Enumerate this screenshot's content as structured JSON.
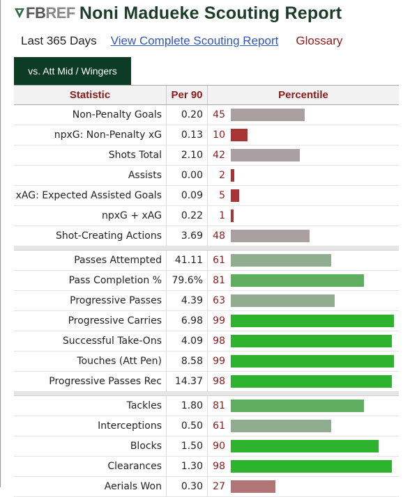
{
  "header": {
    "logo_text_fb": "FB",
    "logo_text_ref": "REF",
    "title": "Noni Madueke Scouting Report"
  },
  "subnav": {
    "range": "Last 365 Days",
    "full_report_link": "View Complete Scouting Report",
    "glossary_link": "Glossary"
  },
  "tab": {
    "label": "vs. Att Mid / Wingers"
  },
  "table": {
    "headers": {
      "statistic": "Statistic",
      "per90": "Per 90",
      "percentile": "Percentile"
    },
    "groups": [
      [
        {
          "stat": "Non-Penalty Goals",
          "per90": "0.20",
          "percentile": 45
        },
        {
          "stat": "npxG: Non-Penalty xG",
          "per90": "0.13",
          "percentile": 10
        },
        {
          "stat": "Shots Total",
          "per90": "2.10",
          "percentile": 42
        },
        {
          "stat": "Assists",
          "per90": "0.00",
          "percentile": 2
        },
        {
          "stat": "xAG: Expected Assisted Goals",
          "per90": "0.09",
          "percentile": 5
        },
        {
          "stat": "npxG + xAG",
          "per90": "0.22",
          "percentile": 1
        },
        {
          "stat": "Shot-Creating Actions",
          "per90": "3.69",
          "percentile": 48
        }
      ],
      [
        {
          "stat": "Passes Attempted",
          "per90": "41.11",
          "percentile": 61
        },
        {
          "stat": "Pass Completion %",
          "per90": "79.6%",
          "percentile": 81
        },
        {
          "stat": "Progressive Passes",
          "per90": "4.39",
          "percentile": 63
        },
        {
          "stat": "Progressive Carries",
          "per90": "6.98",
          "percentile": 99
        },
        {
          "stat": "Successful Take-Ons",
          "per90": "4.09",
          "percentile": 98
        },
        {
          "stat": "Touches (Att Pen)",
          "per90": "8.58",
          "percentile": 99
        },
        {
          "stat": "Progressive Passes Rec",
          "per90": "14.37",
          "percentile": 98
        }
      ],
      [
        {
          "stat": "Tackles",
          "per90": "1.80",
          "percentile": 81
        },
        {
          "stat": "Interceptions",
          "per90": "0.50",
          "percentile": 61
        },
        {
          "stat": "Blocks",
          "per90": "1.50",
          "percentile": 90
        },
        {
          "stat": "Clearances",
          "per90": "1.30",
          "percentile": 98
        },
        {
          "stat": "Aerials Won",
          "per90": "0.30",
          "percentile": 27
        }
      ]
    ]
  },
  "colors": {
    "title_green": "#1c3c2a",
    "tab_bg": "#0c3b26",
    "header_red": "#8b1a1a",
    "bar_red_strong": "#a83434",
    "bar_red_light": "#b07575",
    "bar_gray": "#aa9fa1",
    "bar_green_light": "#90ad90",
    "bar_green_mid": "#5fae5f",
    "bar_green_strong": "#2db32d"
  }
}
